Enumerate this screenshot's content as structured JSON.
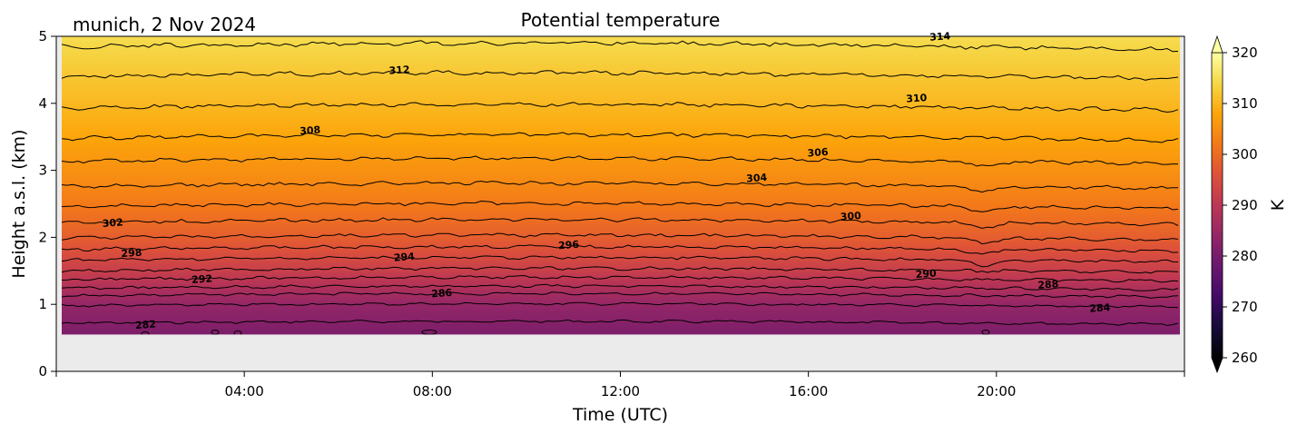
{
  "chart_data": {
    "type": "contour",
    "title": "Potential temperature",
    "subtitle": "munich, 2 Nov 2024",
    "xlabel": "Time (UTC)",
    "ylabel": "Height a.s.l. (km)",
    "x_range_hours": [
      0,
      24
    ],
    "x_tick_hours": [
      4,
      8,
      12,
      16,
      20
    ],
    "x_tick_labels": [
      "04:00",
      "08:00",
      "12:00",
      "16:00",
      "20:00"
    ],
    "ylim": [
      0,
      5
    ],
    "y_ticks": [
      0,
      1,
      2,
      3,
      4,
      5
    ],
    "data_bottom_km": 0.55,
    "colorbar": {
      "label": "K",
      "range": [
        260,
        320
      ],
      "ticks": [
        260,
        270,
        280,
        290,
        300,
        310,
        320
      ],
      "colormap": "inferno",
      "extend": "both"
    },
    "contour_lines": [
      {
        "level": 282,
        "height_km": 0.72
      },
      {
        "level": 284,
        "height_km": 0.98
      },
      {
        "level": 286,
        "height_km": 1.13
      },
      {
        "level": 288,
        "height_km": 1.24
      },
      {
        "level": 290,
        "height_km": 1.37
      },
      {
        "level": 292,
        "height_km": 1.5
      },
      {
        "level": 294,
        "height_km": 1.66
      },
      {
        "level": 296,
        "height_km": 1.82
      },
      {
        "level": 298,
        "height_km": 1.99
      },
      {
        "level": 300,
        "height_km": 2.22
      },
      {
        "level": 302,
        "height_km": 2.46
      },
      {
        "level": 304,
        "height_km": 2.76
      },
      {
        "level": 306,
        "height_km": 3.13
      },
      {
        "level": 308,
        "height_km": 3.48
      },
      {
        "level": 310,
        "height_km": 3.93
      },
      {
        "level": 312,
        "height_km": 4.4
      },
      {
        "level": 314,
        "height_km": 4.84
      }
    ],
    "contour_labels": [
      {
        "text": "282",
        "hour": 1.9,
        "height_km": 0.7
      },
      {
        "text": "284",
        "hour": 22.2,
        "height_km": 0.95
      },
      {
        "text": "286",
        "hour": 8.2,
        "height_km": 1.17
      },
      {
        "text": "288",
        "hour": 21.1,
        "height_km": 1.3
      },
      {
        "text": "290",
        "hour": 18.5,
        "height_km": 1.46
      },
      {
        "text": "292",
        "hour": 3.1,
        "height_km": 1.38
      },
      {
        "text": "294",
        "hour": 7.4,
        "height_km": 1.71
      },
      {
        "text": "296",
        "hour": 10.9,
        "height_km": 1.89
      },
      {
        "text": "298",
        "hour": 1.6,
        "height_km": 1.77
      },
      {
        "text": "300",
        "hour": 16.9,
        "height_km": 2.32
      },
      {
        "text": "302",
        "hour": 1.2,
        "height_km": 2.22
      },
      {
        "text": "304",
        "hour": 14.9,
        "height_km": 2.89
      },
      {
        "text": "306",
        "hour": 16.2,
        "height_km": 3.27
      },
      {
        "text": "308",
        "hour": 5.4,
        "height_km": 3.6
      },
      {
        "text": "310",
        "hour": 18.3,
        "height_km": 4.08
      },
      {
        "text": "312",
        "hour": 7.3,
        "height_km": 4.5
      },
      {
        "text": "314",
        "hour": 18.8,
        "height_km": 5.0
      }
    ]
  }
}
